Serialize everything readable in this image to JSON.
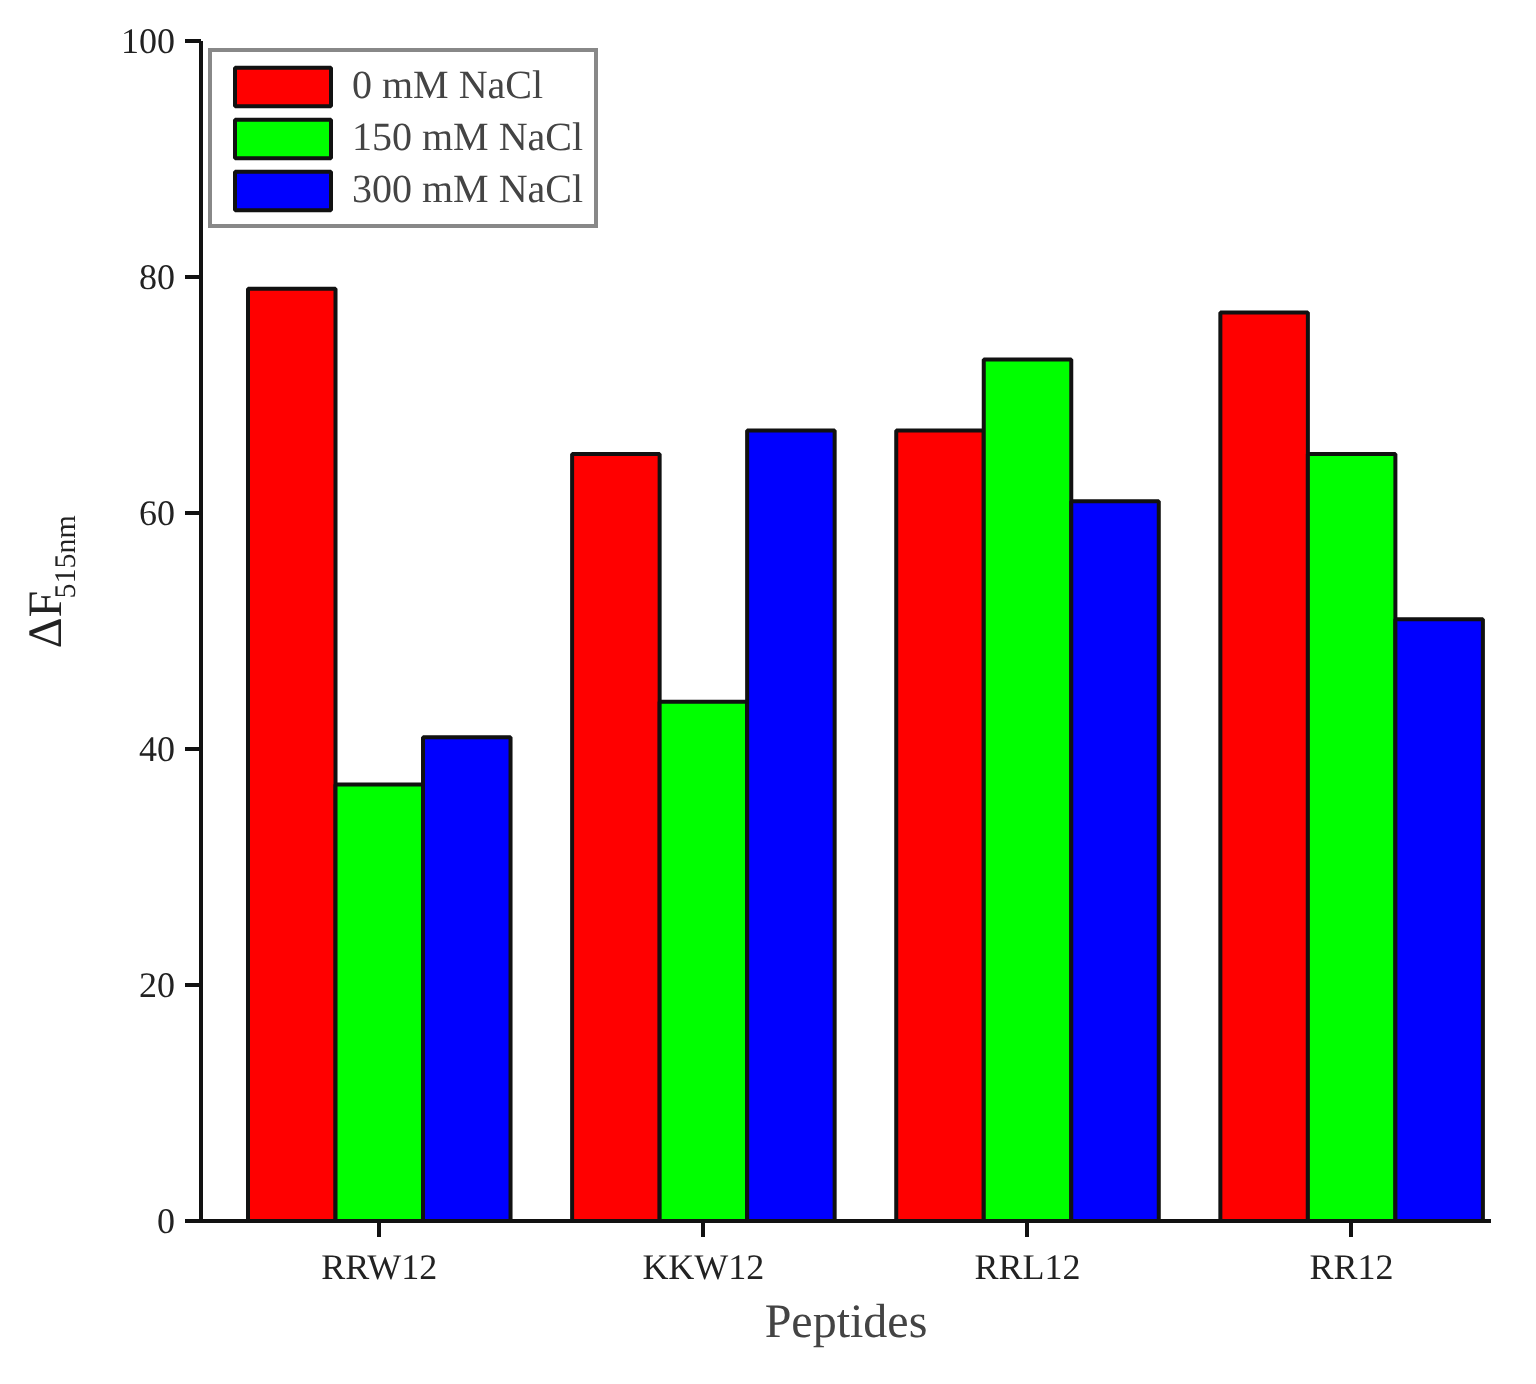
{
  "chart_data": {
    "type": "bar",
    "categories": [
      "RRW12",
      "KKW12",
      "RRL12",
      "RR12"
    ],
    "series": [
      {
        "name": "0 mM NaCl",
        "color": "#ff0000",
        "values": [
          79,
          65,
          67,
          77
        ]
      },
      {
        "name": "150 mM NaCl",
        "color": "#00ff00",
        "values": [
          37,
          44,
          73,
          65
        ]
      },
      {
        "name": "300 mM NaCl",
        "color": "#0000ff",
        "values": [
          41,
          67,
          61,
          51
        ]
      }
    ],
    "xlabel": "Peptides",
    "ylabel": "ΔF$_{515nm}$",
    "ylim": [
      0,
      100
    ],
    "yticks": [
      0,
      20,
      40,
      60,
      80,
      100
    ],
    "grid": false,
    "legend": "top left"
  }
}
